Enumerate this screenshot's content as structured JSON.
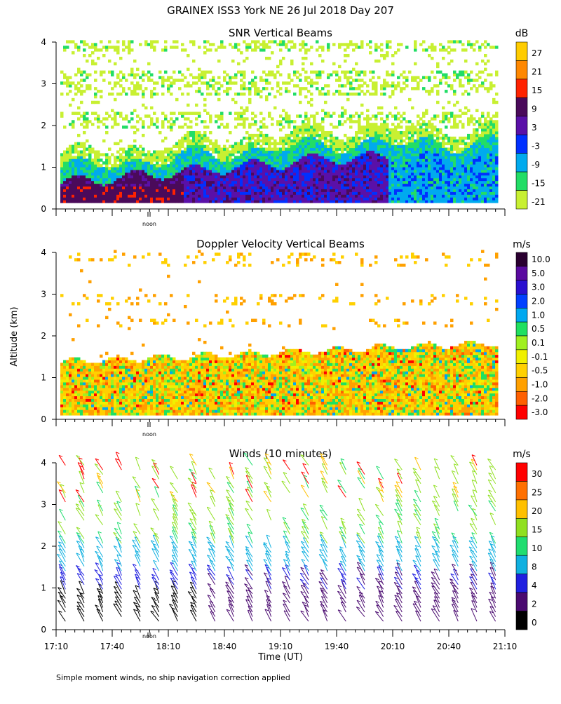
{
  "page": {
    "title": "GRAINEX ISS3 York NE  26 Jul 2018 Day 207",
    "ylabel": "Altitude (km)",
    "footnote": "Simple moment winds, no ship navigation correction applied"
  },
  "chart_data": [
    {
      "type": "heatmap",
      "title": "SNR Vertical Beams",
      "ylim": [
        0,
        4
      ],
      "yticks": [
        "0",
        "1",
        "2",
        "3",
        "4"
      ],
      "xlim": [
        0,
        240
      ],
      "noon_label": "noon",
      "colorbar": {
        "unit": "dB",
        "labels": [
          "27",
          "21",
          "15",
          "9",
          "3",
          "-3",
          "-9",
          "-15",
          "-21"
        ],
        "colors": [
          "#ffcc00",
          "#ff8800",
          "#ff2200",
          "#4a0a5a",
          "#5a10a8",
          "#0030ff",
          "#00aaee",
          "#22dd66",
          "#c8f032"
        ]
      }
    },
    {
      "type": "heatmap",
      "title": "Doppler Velocity Vertical Beams",
      "ylim": [
        0,
        4
      ],
      "yticks": [
        "0",
        "1",
        "2",
        "3",
        "4"
      ],
      "xlim": [
        0,
        240
      ],
      "noon_label": "noon",
      "colorbar": {
        "unit": "m/s",
        "labels": [
          "10.0",
          "5.0",
          "3.0",
          "2.0",
          "1.0",
          "0.5",
          "0.1",
          "-0.1",
          "-0.5",
          "-1.0",
          "-2.0",
          "-3.0"
        ],
        "colors": [
          "#2a0030",
          "#5a0aa0",
          "#2a10d0",
          "#0040ff",
          "#00a8f0",
          "#20e060",
          "#a0f020",
          "#f0f000",
          "#ffd000",
          "#ffa000",
          "#ff6000",
          "#ff0000"
        ]
      }
    },
    {
      "type": "scatter",
      "title": "Winds (10 minutes)",
      "ylim": [
        0,
        4
      ],
      "yticks": [
        "0",
        "1",
        "2",
        "3",
        "4"
      ],
      "xlim": [
        0,
        240
      ],
      "xticks": [
        "17:10",
        "17:40",
        "18:10",
        "18:40",
        "19:10",
        "19:40",
        "20:10",
        "20:40",
        "21:10"
      ],
      "xlabel": "Time (UT)",
      "noon_label": "noon",
      "colorbar": {
        "unit": "m/s",
        "labels": [
          "30",
          "25",
          "20",
          "15",
          "10",
          "8",
          "4",
          "2",
          "0"
        ],
        "colors": [
          "#ff0000",
          "#ff7000",
          "#ffc000",
          "#90e020",
          "#20dd70",
          "#10b0e0",
          "#2020e0",
          "#4a0a70",
          "#000000"
        ]
      }
    }
  ]
}
